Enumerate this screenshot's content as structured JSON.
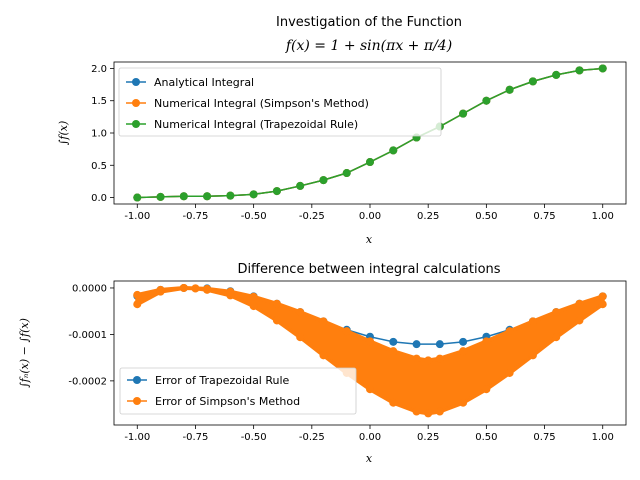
{
  "chart_data": [
    {
      "type": "line",
      "title_line1": "Investigation of the Function",
      "title_line2": "f(x) = 1 + sin(πx + π/4)",
      "xlabel": "x",
      "ylabel": "∫f(x)",
      "xlim": [
        -1.1,
        1.1
      ],
      "ylim": [
        -0.1,
        2.1
      ],
      "xticks": [
        "-1.00",
        "-0.75",
        "-0.50",
        "-0.25",
        "0.00",
        "0.25",
        "0.50",
        "0.75",
        "1.00"
      ],
      "yticks": [
        "0.0",
        "0.5",
        "1.0",
        "1.5",
        "2.0"
      ],
      "legend": "top-left",
      "series": [
        {
          "name": "Analytical Integral",
          "color": "#1f77b4",
          "x": [
            -1.0,
            -0.9,
            -0.8,
            -0.7,
            -0.6,
            -0.5,
            -0.4,
            -0.3,
            -0.2,
            -0.1,
            0.0,
            0.1,
            0.2,
            0.3,
            0.4,
            0.5,
            0.6,
            0.7,
            0.8,
            0.9,
            1.0
          ],
          "y": [
            0.0,
            0.01,
            0.02,
            0.02,
            0.03,
            0.05,
            0.1,
            0.18,
            0.27,
            0.38,
            0.55,
            0.73,
            0.93,
            1.1,
            1.3,
            1.5,
            1.67,
            1.8,
            1.9,
            1.97,
            2.0
          ]
        },
        {
          "name": "Numerical Integral (Simpson's Method)",
          "color": "#ff7f0e",
          "x": [
            -1.0,
            -0.9,
            -0.8,
            -0.7,
            -0.6,
            -0.5,
            -0.4,
            -0.3,
            -0.2,
            -0.1,
            0.0,
            0.1,
            0.2,
            0.3,
            0.4,
            0.5,
            0.6,
            0.7,
            0.8,
            0.9,
            1.0
          ],
          "y": [
            0.0,
            0.01,
            0.02,
            0.02,
            0.03,
            0.05,
            0.1,
            0.18,
            0.27,
            0.38,
            0.55,
            0.73,
            0.93,
            1.1,
            1.3,
            1.5,
            1.67,
            1.8,
            1.9,
            1.97,
            2.0
          ]
        },
        {
          "name": "Numerical Integral (Trapezoidal Rule)",
          "color": "#2ca02c",
          "x": [
            -1.0,
            -0.9,
            -0.8,
            -0.7,
            -0.6,
            -0.5,
            -0.4,
            -0.3,
            -0.2,
            -0.1,
            0.0,
            0.1,
            0.2,
            0.3,
            0.4,
            0.5,
            0.6,
            0.7,
            0.8,
            0.9,
            1.0
          ],
          "y": [
            0.0,
            0.01,
            0.02,
            0.02,
            0.03,
            0.05,
            0.1,
            0.18,
            0.27,
            0.38,
            0.55,
            0.73,
            0.93,
            1.1,
            1.3,
            1.5,
            1.67,
            1.8,
            1.9,
            1.97,
            2.0
          ]
        }
      ]
    },
    {
      "type": "line",
      "title": "Difference between integral calculations",
      "xlabel": "x",
      "ylabel": "∫fₙ(x) − ∫f(x)",
      "xlim": [
        -1.1,
        1.1
      ],
      "ylim": [
        -0.000295,
        1.5e-05
      ],
      "xticks": [
        "-1.00",
        "-0.75",
        "-0.50",
        "-0.25",
        "0.00",
        "0.25",
        "0.50",
        "0.75",
        "1.00"
      ],
      "yticks": [
        "0.0000",
        "-0.0001",
        "-0.0002"
      ],
      "yticks_values": [
        0,
        -0.0001,
        -0.0002
      ],
      "legend": "lower-left",
      "series": [
        {
          "name": "Error of Trapezoidal Rule",
          "color": "#1f77b4",
          "x": [
            -1.0,
            -0.9,
            -0.8,
            -0.7,
            -0.6,
            -0.5,
            -0.4,
            -0.3,
            -0.2,
            -0.1,
            0.0,
            0.1,
            0.2,
            0.3,
            0.4,
            0.5,
            0.6,
            0.7,
            0.8,
            0.9,
            1.0
          ],
          "y": [
            -1.7e-05,
            -4e-06,
            0.0,
            -1e-06,
            -7e-06,
            -1.8e-05,
            -3.4e-05,
            -5.2e-05,
            -7.2e-05,
            -9e-05,
            -0.000105,
            -0.000116,
            -0.000121,
            -0.000121,
            -0.000116,
            -0.000105,
            -9e-05,
            -7.2e-05,
            -5.2e-05,
            -3.4e-05,
            -1.8e-05
          ]
        },
        {
          "name": "Error of Simpson's Method",
          "color": "#ff7f0e",
          "x": [
            -1.0,
            -0.9,
            -0.8,
            -0.75,
            -0.7,
            -0.6,
            -0.5,
            -0.4,
            -0.3,
            -0.2,
            -0.1,
            0.0,
            0.1,
            0.2,
            0.25,
            0.3,
            0.4,
            0.5,
            0.6,
            0.7,
            0.8,
            0.9,
            1.0
          ],
          "y": [
            -3.5e-05,
            -8e-06,
            0.0,
            -1e-06,
            -4e-06,
            -1.6e-05,
            -3.9e-05,
            -7e-05,
            -0.000106,
            -0.000145,
            -0.000183,
            -0.000218,
            -0.000247,
            -0.000266,
            -0.00027,
            -0.000266,
            -0.000247,
            -0.000218,
            -0.000183,
            -0.000145,
            -0.000106,
            -7e-05,
            -3.5e-05
          ],
          "band_upper": [
            -1.5e-05,
            -4e-06,
            0.0,
            -1e-06,
            -2e-06,
            -8e-06,
            -1.9e-05,
            -3.4e-05,
            -5.2e-05,
            -7.2e-05,
            -9.3e-05,
            -0.000115,
            -0.000136,
            -0.000152,
            -0.000156,
            -0.000152,
            -0.000136,
            -0.000115,
            -9.3e-05,
            -7.2e-05,
            -5.2e-05,
            -3.4e-05,
            -1.8e-05
          ]
        }
      ]
    }
  ]
}
